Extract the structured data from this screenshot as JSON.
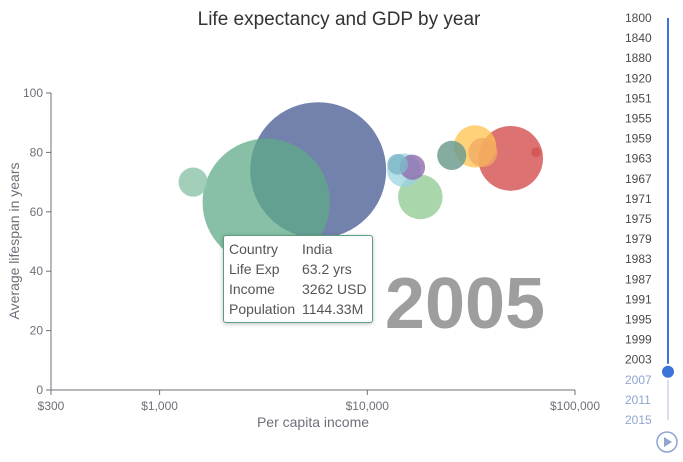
{
  "chart_data": {
    "type": "scatter",
    "title": "Life expectancy and GDP by year",
    "xlabel": "Per capita income",
    "ylabel": "Average lifespan in years",
    "x_scale": "log",
    "xlim": [
      300,
      100000
    ],
    "ylim": [
      0,
      100
    ],
    "x_tick_values": [
      300,
      1000,
      10000,
      100000
    ],
    "x_tick_labels": [
      "$300",
      "$1,000",
      "$10,000",
      "$100,000"
    ],
    "y_ticks": [
      0,
      20,
      40,
      60,
      80,
      100
    ],
    "current_year": "2005",
    "points": [
      {
        "income": 1450,
        "life_exp": 70,
        "population": 60,
        "color": "#91c7ae",
        "alpha": 0.85
      },
      {
        "income": 3262,
        "life_exp": 63.2,
        "population": 1144.33,
        "color": "#5fa98a",
        "alpha": 0.75
      },
      {
        "income": 5800,
        "life_exp": 74,
        "population": 1305,
        "color": "#4f6397",
        "alpha": 0.8
      },
      {
        "income": 14000,
        "life_exp": 76,
        "population": 30,
        "color": "#7fb8c8",
        "alpha": 0.85
      },
      {
        "income": 16500,
        "life_exp": 75,
        "population": 45,
        "color": "#8e6bac",
        "alpha": 0.8
      },
      {
        "income": 15000,
        "life_exp": 74,
        "population": 80,
        "color": "#9bd3e0",
        "alpha": 0.75
      },
      {
        "income": 18000,
        "life_exp": 65,
        "population": 140,
        "color": "#8cc98f",
        "alpha": 0.75
      },
      {
        "income": 25500,
        "life_exp": 79,
        "population": 60,
        "color": "#6f9e8f",
        "alpha": 0.85
      },
      {
        "income": 33000,
        "life_exp": 82,
        "population": 127,
        "color": "#ffc34d",
        "alpha": 0.75
      },
      {
        "income": 36000,
        "life_exp": 80,
        "population": 60,
        "color": "#f2a864",
        "alpha": 0.75
      },
      {
        "income": 49000,
        "life_exp": 78,
        "population": 296,
        "color": "#d3504f",
        "alpha": 0.8
      },
      {
        "income": 65000,
        "life_exp": 80,
        "population": 5,
        "color": "#d3504f",
        "alpha": 0.75
      }
    ]
  },
  "tooltip": {
    "country_label": "Country",
    "country_value": "India",
    "life_label": "Life Exp",
    "life_value": "63.2 yrs",
    "income_label": "Income",
    "income_value": "3262 USD",
    "population_label": "Population",
    "population_value": "1144.33M"
  },
  "timeline": {
    "years": [
      "1800",
      "1840",
      "1880",
      "1920",
      "1951",
      "1955",
      "1959",
      "1963",
      "1967",
      "1971",
      "1975",
      "1979",
      "1983",
      "1987",
      "1991",
      "1995",
      "1999",
      "2003",
      "2007",
      "2011",
      "2015"
    ],
    "current_index": 17,
    "progress_fraction": 0.88,
    "play_icon": "play-icon",
    "accent_color": "#3d74d9"
  }
}
